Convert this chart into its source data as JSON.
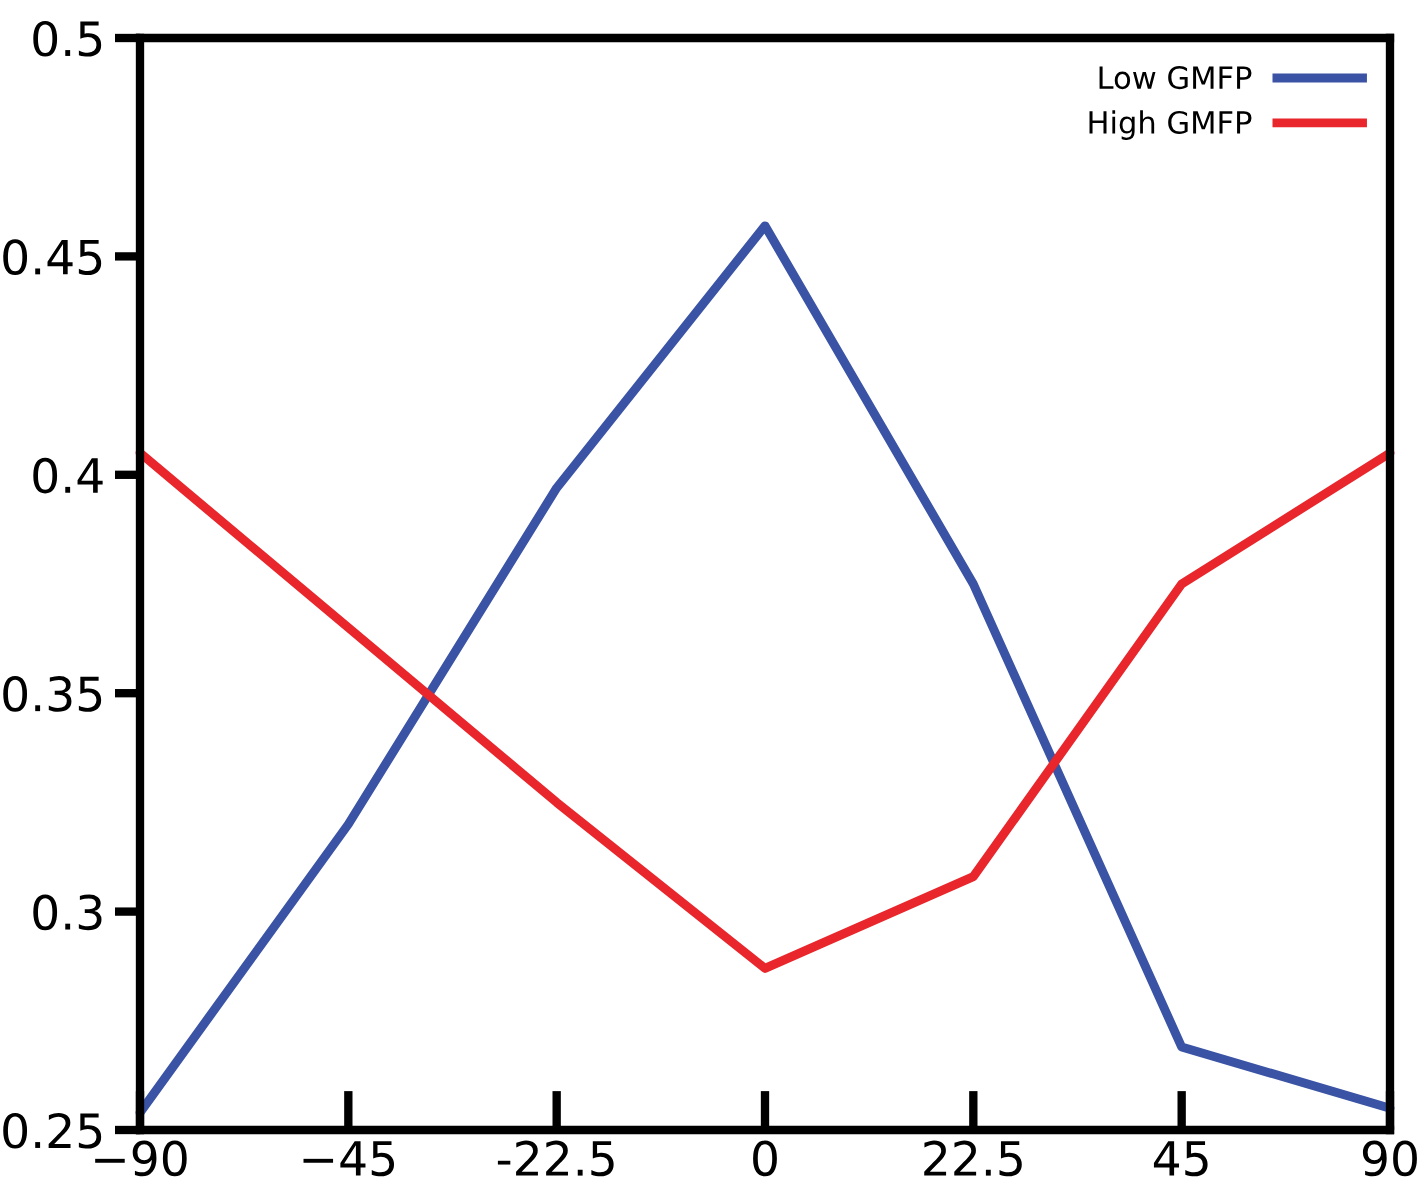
{
  "chart_data": {
    "type": "line",
    "categories": [
      "−90",
      "−45",
      "-22.5",
      "0",
      "22.5",
      "45",
      "90"
    ],
    "series": [
      {
        "name": "Low GMFP",
        "color": "#3a53a4",
        "values": [
          0.254,
          0.32,
          0.397,
          0.457,
          0.375,
          0.269,
          0.255
        ]
      },
      {
        "name": "High GMFP",
        "color": "#e8262b",
        "values": [
          0.405,
          0.365,
          0.325,
          0.287,
          0.308,
          0.375,
          0.405
        ]
      }
    ],
    "ylim": [
      0.25,
      0.5
    ],
    "yticks": [
      0.25,
      0.3,
      0.35,
      0.4,
      0.45,
      0.5
    ],
    "legend": "top right",
    "marker": "none",
    "line_style": "solid",
    "grid": false
  }
}
